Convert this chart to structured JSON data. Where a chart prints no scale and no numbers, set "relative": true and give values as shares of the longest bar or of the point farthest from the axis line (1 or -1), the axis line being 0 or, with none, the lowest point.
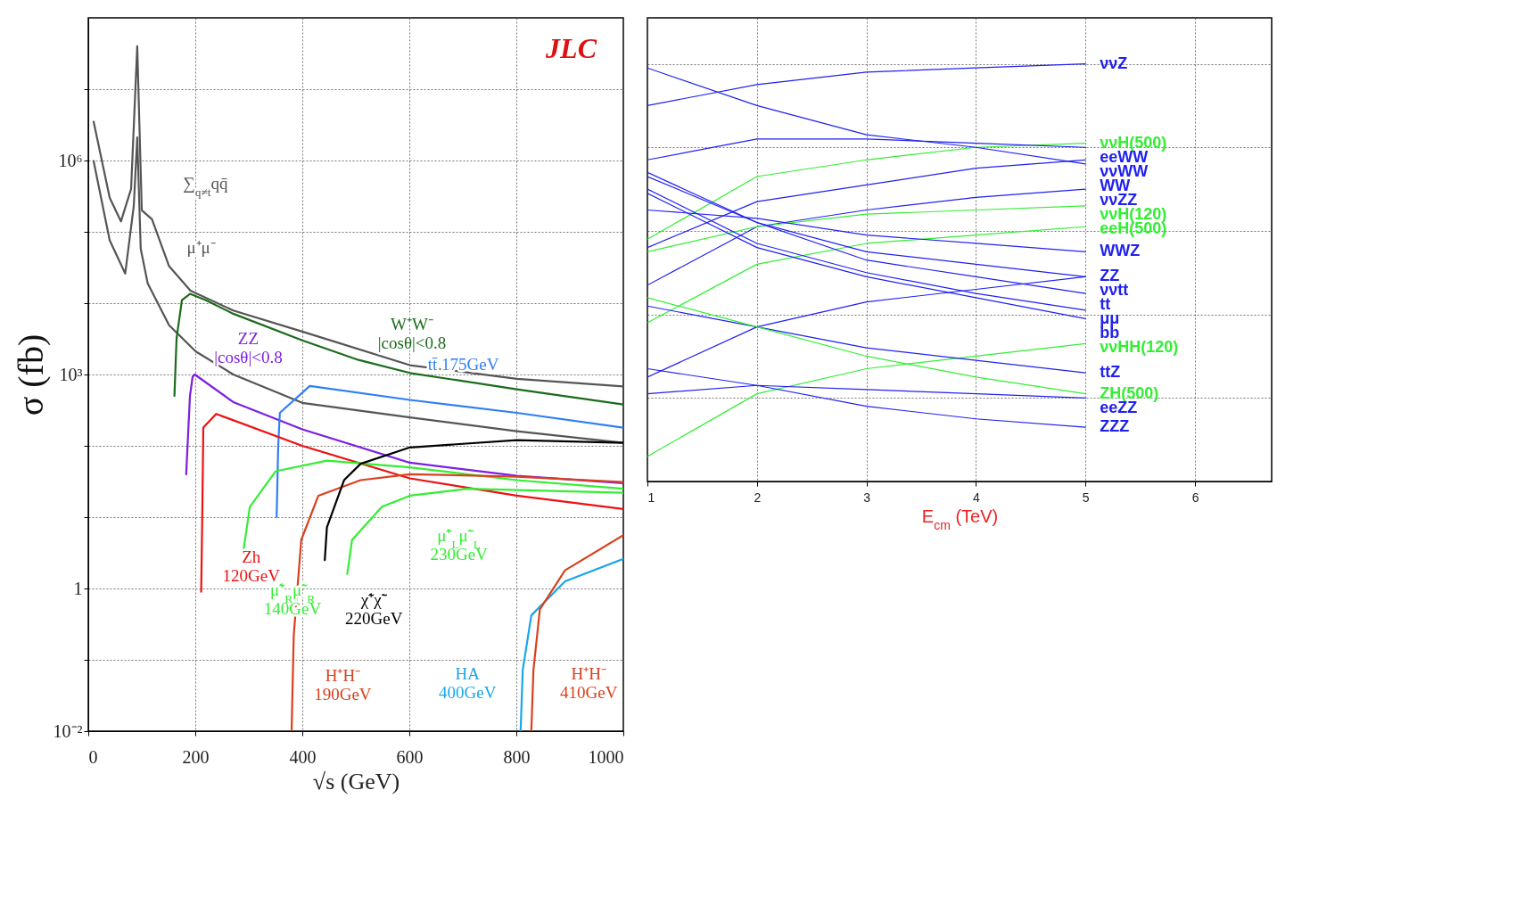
{
  "chart_data": [
    {
      "type": "line",
      "xlabel": "√s (GeV)",
      "ylabel": "σ (fb)",
      "log": true,
      "grid": true,
      "xlim": [
        0,
        1000
      ],
      "ylim": [
        0.01,
        100000000
      ],
      "xticks": [
        0,
        200,
        400,
        600,
        800,
        1000
      ],
      "yticks": [
        {
          "value": 0.01,
          "label": "10⁻²"
        },
        {
          "value": 0.1,
          "label": null
        },
        1,
        {
          "value": 10,
          "label": null
        },
        {
          "value": 100,
          "label": null
        },
        {
          "value": 1000,
          "label": "10³"
        },
        {
          "value": 10000,
          "label": null
        },
        {
          "value": 100000,
          "label": null
        },
        {
          "value": 1000000,
          "label": "10⁶"
        },
        {
          "value": 10000000,
          "label": null
        }
      ],
      "series": [
        {
          "color": "#555555",
          "x": [
            10,
            40,
            61,
            80,
            91.5,
            100,
            119,
            151,
            191,
            271,
            400,
            601,
            801,
            1000
          ],
          "values": [
            3500000,
            300000,
            140000,
            400000,
            40000000,
            200000,
            150000,
            33000,
            15000,
            7900,
            4000,
            1350,
            870,
            680
          ]
        },
        {
          "color": "#555555",
          "x": [
            10,
            40,
            69,
            85,
            91.5,
            98,
            111,
            151,
            201,
            271,
            400,
            601,
            801,
            1000
          ],
          "values": [
            980000,
            76000,
            26000,
            230000,
            2100000,
            58000,
            19000,
            4900,
            2100,
            1000,
            400,
            250,
            160,
            110
          ]
        },
        {
          "color": "#7b1fe0",
          "x": [
            183,
            190,
            195,
            199,
            271,
            400,
            601,
            801,
            1000
          ],
          "values": [
            40,
            500,
            930,
            1000,
            410,
            170,
            58,
            38,
            30
          ]
        },
        {
          "color": "#1b6b1b",
          "x": [
            161,
            165,
            175,
            190,
            220,
            271,
            400,
            505,
            601,
            801,
            1000
          ],
          "values": [
            500,
            3200,
            11000,
            13500,
            11000,
            7100,
            3000,
            1600,
            1050,
            620,
            380
          ]
        },
        {
          "color": "#2f7ff5",
          "x": [
            352,
            355,
            358,
            414,
            601,
            801,
            1000
          ],
          "values": [
            10,
            100,
            290,
            690,
            440,
            290,
            180
          ]
        },
        {
          "color": "#ee1111",
          "x": [
            211,
            213,
            215,
            239,
            400,
            601,
            801,
            1000
          ],
          "values": [
            0.9,
            10,
            180,
            280,
            100,
            35,
            20,
            13
          ]
        },
        {
          "color": "#33ee33",
          "x": [
            290,
            302,
            350,
            446,
            601,
            801,
            1000
          ],
          "values": [
            3.4,
            14,
            44,
            62,
            50,
            33,
            25
          ]
        },
        {
          "color": "#d9411e",
          "x": [
            380,
            384,
            398,
            430,
            509,
            601,
            801,
            1000
          ],
          "values": [
            0.01,
            0.22,
            4.8,
            20,
            33,
            40,
            37,
            31
          ]
        },
        {
          "color": "#000000",
          "x": [
            442,
            446,
            478,
            509,
            601,
            801,
            1000
          ],
          "values": [
            2.5,
            7.2,
            33,
            56,
            95,
            120,
            110
          ]
        },
        {
          "color": "#33ee33",
          "x": [
            484,
            493,
            549,
            601,
            708,
            1000
          ],
          "values": [
            1.6,
            4.8,
            14,
            20,
            25,
            22
          ]
        },
        {
          "color": "#1aa6e8",
          "x": [
            808,
            812,
            828,
            891,
            1000
          ],
          "values": [
            0.01,
            0.072,
            0.42,
            1.26,
            2.6
          ]
        },
        {
          "color": "#d9411e",
          "x": [
            828,
            832,
            844,
            891,
            1000
          ],
          "values": [
            0.01,
            0.072,
            0.51,
            1.8,
            5.6
          ]
        }
      ],
      "annotations": [
        {
          "text": "∑$_{q≠t}$qq̄",
          "x": 119,
          "y": 150000
        },
        {
          "text": "μ⁺μ⁻",
          "x": 111,
          "y": 19000
        },
        {
          "text": "ZZ\n|cosθ|<0.8",
          "x": 199,
          "y": 1000
        },
        {
          "text": "W⁺W⁻\n|cosθ|<0.8",
          "x": 505,
          "y": 1600
        },
        {
          "text": "tt̄ 175GeV",
          "x": 601,
          "y": 440
        },
        {
          "text": "Zh\n120GeV",
          "x": 213,
          "y": 10
        },
        {
          "text": "μ̃⁺$_{R}$μ̃⁻$_{R}$\n140GeV",
          "x": 290,
          "y": 3.4
        },
        {
          "text": "H⁺H⁻\n190GeV",
          "x": 384,
          "y": 0.22
        },
        {
          "text": "χ̃⁺χ̃⁻\n220GeV",
          "x": 442,
          "y": 2.5
        },
        {
          "text": "μ̃⁺$_{L}$μ̃⁻$_{L}$\n230GeV",
          "x": 601,
          "y": 20
        },
        {
          "text": "HA\n400GeV",
          "x": 812,
          "y": 0.072
        },
        {
          "text": "H⁺H⁻\n410GeV",
          "x": 832,
          "y": 0.072
        },
        "JLC"
      ]
    },
    {
      "type": "line",
      "relative": true,
      "xlabel": "E$_{cm}$ (TeV)",
      "grid": true,
      "xlim": [
        1,
        6.7
      ],
      "xticks": [
        1,
        2,
        3,
        4,
        5,
        6
      ],
      "x": [
        1,
        2,
        3,
        4,
        5
      ],
      "series": [
        {
          "name": "ννZ",
          "color": "#2020f0",
          "values": [
            0.9,
            0.95,
            0.98,
            0.99,
            1.0
          ]
        },
        {
          "name": "ννH(500)",
          "color": "#33ee33",
          "values": [
            0.58,
            0.73,
            0.77,
            0.8,
            0.81
          ]
        },
        {
          "name": "eeWW",
          "color": "#2020f0",
          "values": [
            0.77,
            0.82,
            0.82,
            0.81,
            0.8
          ]
        },
        {
          "name": "ννWW",
          "color": "#2020f0",
          "values": [
            0.56,
            0.67,
            0.71,
            0.75,
            0.77
          ]
        },
        {
          "name": "WW",
          "color": "#2020f0",
          "values": [
            0.99,
            0.9,
            0.83,
            0.8,
            0.76
          ]
        },
        {
          "name": "ννZZ",
          "color": "#2020f0",
          "values": [
            0.47,
            0.61,
            0.65,
            0.68,
            0.7
          ]
        },
        {
          "name": "ννH(120)",
          "color": "#33ee33",
          "values": [
            0.55,
            0.61,
            0.64,
            0.65,
            0.66
          ]
        },
        {
          "name": "eeH(500)",
          "color": "#33ee33",
          "values": [
            0.38,
            0.52,
            0.57,
            0.59,
            0.61
          ]
        },
        {
          "name": "WWZ",
          "color": "#2020f0",
          "values": [
            0.65,
            0.63,
            0.59,
            0.57,
            0.55
          ]
        },
        {
          "name": "ZZ",
          "color": "#2020f0",
          "values": [
            0.74,
            0.62,
            0.55,
            0.52,
            0.49
          ]
        },
        {
          "name": "ννtt",
          "color": "#2020f0",
          "values": [
            0.25,
            0.37,
            0.43,
            0.46,
            0.49
          ]
        },
        {
          "name": "tt",
          "color": "#2020f0",
          "values": [
            0.73,
            0.62,
            0.53,
            0.49,
            0.45
          ]
        },
        {
          "name": "μμ",
          "color": "#2020f0",
          "values": [
            0.7,
            0.57,
            0.5,
            0.45,
            0.41
          ]
        },
        {
          "name": "bb",
          "color": "#2020f0",
          "values": [
            0.69,
            0.56,
            0.49,
            0.44,
            0.39
          ]
        },
        {
          "name": "ννHH(120)",
          "color": "#33ee33",
          "values": [
            0.06,
            0.21,
            0.27,
            0.3,
            0.33
          ]
        },
        {
          "name": "ttZ",
          "color": "#2020f0",
          "values": [
            0.42,
            0.37,
            0.32,
            0.29,
            0.26
          ]
        },
        {
          "name": "ZH(500)",
          "color": "#33ee33",
          "values": [
            0.44,
            0.37,
            0.3,
            0.25,
            0.21
          ]
        },
        {
          "name": "eeZZ",
          "color": "#2020f0",
          "values": [
            0.21,
            0.23,
            0.22,
            0.21,
            0.2
          ]
        },
        {
          "name": "ZZZ",
          "color": "#2020f0",
          "values": [
            0.27,
            0.23,
            0.18,
            0.15,
            0.13
          ]
        }
      ]
    }
  ]
}
